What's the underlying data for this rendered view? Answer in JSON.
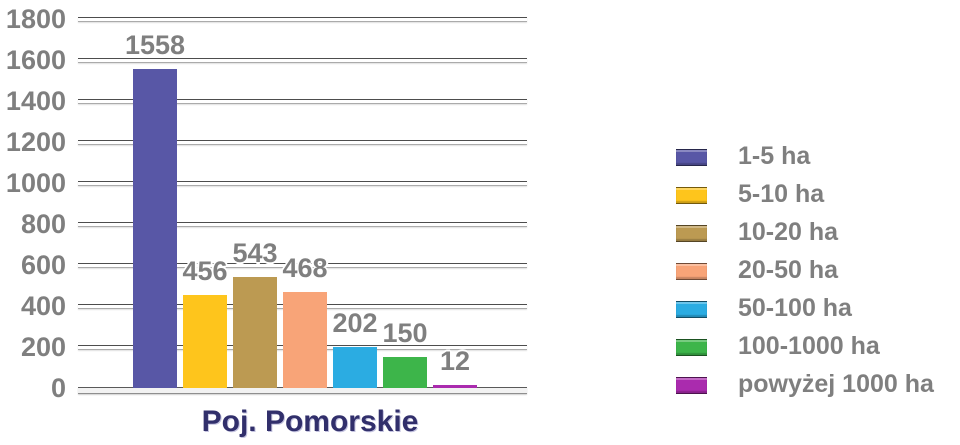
{
  "chart_data": {
    "type": "bar",
    "title": "",
    "xlabel": "Poj. Pomorskie",
    "ylabel": "",
    "ylim": [
      0,
      1800
    ],
    "ytick_step": 200,
    "yticks": [
      0,
      200,
      400,
      600,
      800,
      1000,
      1200,
      1400,
      1600,
      1800
    ],
    "categories": [
      "1-5 ha",
      "5-10 ha",
      "10-20 ha",
      "20-50 ha",
      "50-100 ha",
      "100-1000 ha",
      "powyżej 1000 ha"
    ],
    "values": [
      1558,
      456,
      543,
      468,
      202,
      150,
      12
    ],
    "colors": [
      "#5857a6",
      "#fec51c",
      "#bc9a52",
      "#f8a478",
      "#2bace2",
      "#3db54a",
      "#aa2bae"
    ],
    "data_labels": true,
    "grid": true,
    "legend_position": "right"
  },
  "style_colors": {
    "label_gray": "#7f7f7f",
    "axis_title_navy": "#312f6b",
    "gridline_dark": "#4d4d4d",
    "gridline_light": "#ababab",
    "background": "#ffffff"
  }
}
